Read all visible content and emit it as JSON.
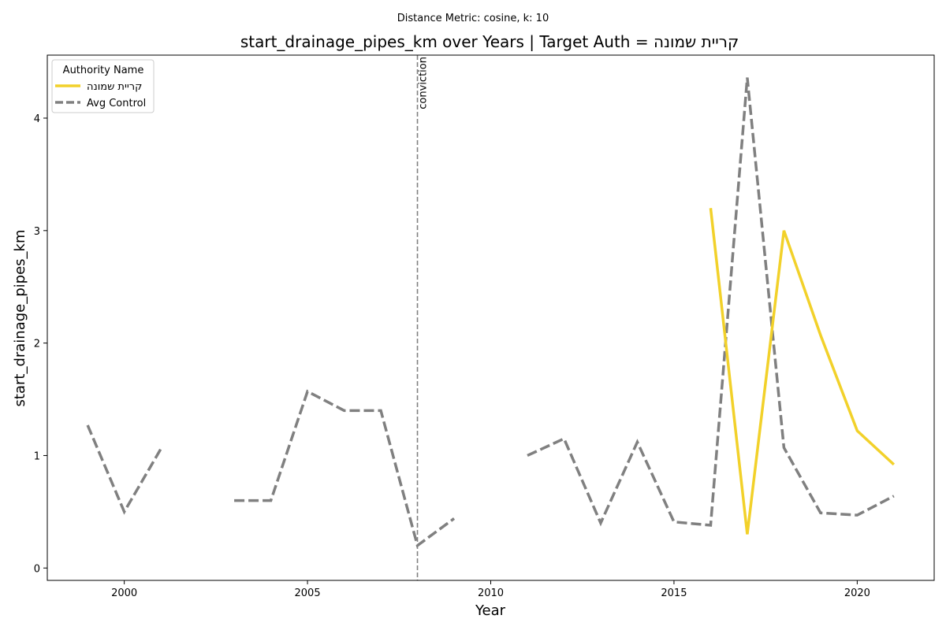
{
  "chart_data": {
    "type": "line",
    "suptitle": "Distance Metric: cosine, k: 10",
    "title": "start_drainage_pipes_km over Years | Target Auth = קריית שמונה",
    "xlabel": "Year",
    "ylabel": "start_drainage_pipes_km",
    "xlim": [
      1997.9,
      2022.1
    ],
    "ylim": [
      -0.11,
      4.56
    ],
    "xticks": [
      2000,
      2005,
      2010,
      2015,
      2020
    ],
    "yticks": [
      0,
      1,
      2,
      3,
      4
    ],
    "grid": false,
    "legend": {
      "title": "Authority Name",
      "location": "top-left"
    },
    "vline": {
      "x": 2008,
      "label": "conviction",
      "color": "#808080"
    },
    "series": [
      {
        "name": "קריית שמונה",
        "color": "#f2d12a",
        "style": "solid",
        "x": [
          2016,
          2017,
          2018,
          2019,
          2020,
          2021
        ],
        "values": [
          3.2,
          0.3,
          3.0,
          2.07,
          1.22,
          0.92
        ]
      },
      {
        "name": "Avg Control",
        "color": "#808080",
        "style": "dashed",
        "x": [
          1999,
          2000,
          2001,
          2002,
          2003,
          2004,
          2005,
          2006,
          2007,
          2008,
          2009,
          2010,
          2011,
          2012,
          2013,
          2014,
          2015,
          2016,
          2017,
          2018,
          2019,
          2020,
          2021
        ],
        "values": [
          1.27,
          0.5,
          1.06,
          null,
          0.6,
          0.6,
          1.57,
          1.4,
          1.4,
          0.2,
          0.44,
          null,
          1.0,
          1.15,
          0.4,
          1.12,
          0.41,
          0.38,
          4.36,
          1.07,
          0.49,
          0.47,
          0.64
        ]
      }
    ]
  }
}
